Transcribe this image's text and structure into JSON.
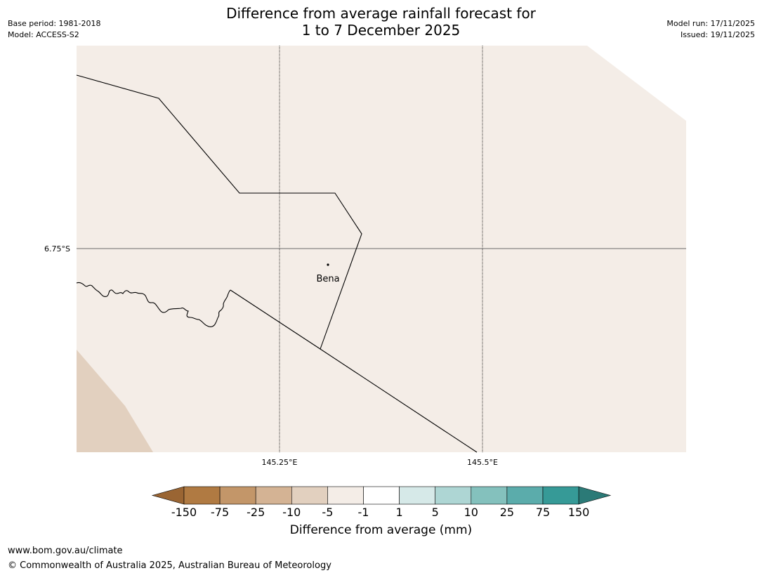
{
  "header": {
    "title_line1": "Difference from average rainfall forecast for",
    "title_line2": "1 to 7 December 2025",
    "base_period": "Base period: 1981-2018",
    "model": "Model: ACCESS-S2",
    "model_run": "Model run: 17/11/2025",
    "issued": "Issued: 19/11/2025"
  },
  "map": {
    "lat_labels": [
      "6.75°S"
    ],
    "lon_labels": [
      "145.25°E",
      "145.5°E"
    ],
    "place": {
      "name": "Bena"
    },
    "colors": {
      "background_fill": "#f4ede7",
      "drier_fill": "#e2d0bf",
      "border_line": "#000000",
      "graticule": "#000000"
    }
  },
  "legend": {
    "label": "Difference from average (mm)",
    "ticks": [
      "-150",
      "-75",
      "-25",
      "-10",
      "-5",
      "-1",
      "1",
      "5",
      "10",
      "25",
      "75",
      "150"
    ],
    "colors": [
      "#9a6533",
      "#b07a42",
      "#c39669",
      "#d4b394",
      "#e2d0bf",
      "#f4ede7",
      "#ffffff",
      "#d6e9e8",
      "#aed6d4",
      "#84c1bd",
      "#5bacab",
      "#369a97",
      "#2b7a77"
    ]
  },
  "footer": {
    "url": "www.bom.gov.au/climate",
    "copyright": "© Commonwealth of Australia 2025, Australian Bureau of Meteorology"
  }
}
